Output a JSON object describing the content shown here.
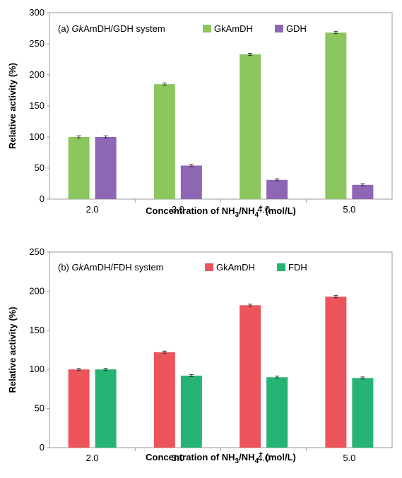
{
  "chart_data": [
    {
      "type": "bar",
      "panel_label": "(a)",
      "legend_title_italic": "Gk",
      "legend_title_rest": "AmDH/GDH system",
      "categories": [
        "2.0",
        "3.0",
        "4.0",
        "5.0"
      ],
      "series": [
        {
          "name": "GkAmDH",
          "color": "#8bc65f",
          "values": [
            100,
            185,
            233,
            268
          ]
        },
        {
          "name": "GDH",
          "color": "#8e67b4",
          "values": [
            100,
            54,
            31,
            23
          ]
        }
      ],
      "ylim": [
        0,
        300
      ],
      "yticks": [
        "0",
        "50",
        "100",
        "150",
        "200",
        "250",
        "300"
      ],
      "ylabel": "Relative activity (%)",
      "xlabel_main": "Concentration of NH",
      "xlabel_sub": "3",
      "xlabel_mid": "/NH",
      "xlabel_sub2": "4",
      "xlabel_sup": "+",
      "xlabel_end": " (mol/L)",
      "legend_position": "top"
    },
    {
      "type": "bar",
      "panel_label": "(b)",
      "legend_title_italic": "Gk",
      "legend_title_rest": "AmDH/FDH system",
      "categories": [
        "2.0",
        "3.0",
        "4.0",
        "5.0"
      ],
      "series": [
        {
          "name": "GkAmDH",
          "color": "#eb545b",
          "values": [
            100,
            122,
            182,
            193
          ]
        },
        {
          "name": "FDH",
          "color": "#26b474",
          "values": [
            100,
            92,
            90,
            89
          ]
        }
      ],
      "ylim": [
        0,
        250
      ],
      "yticks": [
        "0",
        "50",
        "100",
        "150",
        "200",
        "250"
      ],
      "ylabel": "Relative activity (%)",
      "xlabel_main": "Concentration of NH",
      "xlabel_sub": "3",
      "xlabel_mid": "/NH",
      "xlabel_sub2": "4",
      "xlabel_sup": "+",
      "xlabel_end": " (mol/L)",
      "legend_position": "top"
    }
  ]
}
